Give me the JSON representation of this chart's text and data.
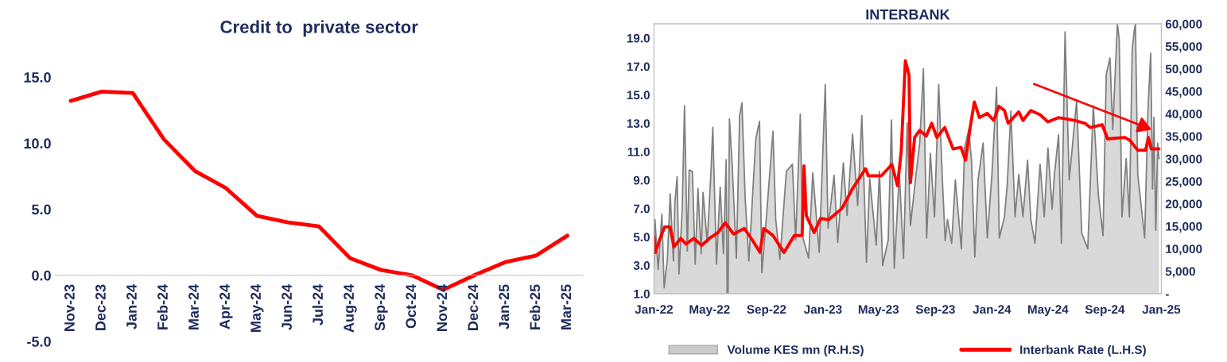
{
  "chart_data": [
    {
      "type": "line",
      "title": "Credit to  private sector",
      "categories": [
        "Nov-23",
        "Dec-23",
        "Jan-24",
        "Feb-24",
        "Mar-24",
        "Apr-24",
        "May-24",
        "Jun-24",
        "Jul-24",
        "Aug-24",
        "Sep-24",
        "Oct-24",
        "Nov-24",
        "Dec-24",
        "Jan-25",
        "Feb-25",
        "Mar-25"
      ],
      "series": [
        {
          "color": "#ff0000",
          "values": [
            13.2,
            13.9,
            13.8,
            10.3,
            7.9,
            6.6,
            4.5,
            4.0,
            3.7,
            1.3,
            0.4,
            0.0,
            -1.1,
            0.0,
            1.0,
            1.5,
            3.0
          ]
        }
      ],
      "ylim": [
        -5,
        15
      ],
      "yticks": [
        {
          "value": -5,
          "label": "-5.0"
        },
        {
          "value": 0,
          "label": "0.0"
        },
        {
          "value": 5,
          "label": "5.0"
        },
        {
          "value": 10,
          "label": "10.0"
        },
        {
          "value": 15,
          "label": "15.0"
        }
      ],
      "grid": false,
      "legend": false,
      "marker": "none",
      "line_style": "solid"
    },
    {
      "type": "line",
      "title": "INTERBANK",
      "legend": "bottom",
      "grid": false,
      "marker": "none",
      "line_style": "solid",
      "xlim": [
        "2022-01-01",
        "2025-01-01"
      ],
      "xticks": [
        {
          "value": "2022-01-01",
          "label": "Jan-22"
        },
        {
          "value": "2022-05-01",
          "label": "May-22"
        },
        {
          "value": "2022-09-01",
          "label": "Sep-22"
        },
        {
          "value": "2023-01-01",
          "label": "Jan-23"
        },
        {
          "value": "2023-05-01",
          "label": "May-23"
        },
        {
          "value": "2023-09-01",
          "label": "Sep-23"
        },
        {
          "value": "2024-01-01",
          "label": "Jan-24"
        },
        {
          "value": "2024-05-01",
          "label": "May-24"
        },
        {
          "value": "2024-09-01",
          "label": "Sep-24"
        },
        {
          "value": "2025-01-01",
          "label": "Jan-25"
        }
      ],
      "ylim": [
        1,
        20
      ],
      "yticks": [
        {
          "value": 1,
          "label": "1.0"
        },
        {
          "value": 3,
          "label": "3.0"
        },
        {
          "value": 5,
          "label": "5.0"
        },
        {
          "value": 7,
          "label": "7.0"
        },
        {
          "value": 9,
          "label": "9.0"
        },
        {
          "value": 11,
          "label": "11.0"
        },
        {
          "value": 13,
          "label": "13.0"
        },
        {
          "value": 15,
          "label": "15.0"
        },
        {
          "value": 17,
          "label": "17.0"
        },
        {
          "value": 19,
          "label": "19.0"
        }
      ],
      "y2lim": [
        0,
        60000
      ],
      "y2ticks": [
        {
          "value": 0,
          "label": "-"
        },
        {
          "value": 5000,
          "label": "5,000"
        },
        {
          "value": 10000,
          "label": "10,000"
        },
        {
          "value": 15000,
          "label": "15,000"
        },
        {
          "value": 20000,
          "label": "20,000"
        },
        {
          "value": 25000,
          "label": "25,000"
        },
        {
          "value": 30000,
          "label": "30,000"
        },
        {
          "value": 35000,
          "label": "35,000"
        },
        {
          "value": 40000,
          "label": "40,000"
        },
        {
          "value": 45000,
          "label": "45,000"
        },
        {
          "value": 50000,
          "label": "50,000"
        },
        {
          "value": 55000,
          "label": "55,000"
        },
        {
          "value": 60000,
          "label": "60,000"
        }
      ],
      "series": [
        {
          "name": "Volume KES mn (R.H.S)",
          "type": "area",
          "axis": "y2",
          "color": "#808080",
          "x": [
            "2022-01-01",
            "2022-01-03",
            "2022-01-10",
            "2022-01-18",
            "2022-01-23",
            "2022-01-30",
            "2022-02-05",
            "2022-02-12",
            "2022-02-15",
            "2022-02-20",
            "2022-02-24",
            "2022-03-03",
            "2022-03-08",
            "2022-03-14",
            "2022-03-18",
            "2022-03-25",
            "2022-03-31",
            "2022-04-06",
            "2022-04-13",
            "2022-04-17",
            "2022-04-26",
            "2022-05-04",
            "2022-05-08",
            "2022-05-16",
            "2022-05-24",
            "2022-05-31",
            "2022-06-06",
            "2022-06-08",
            "2022-06-10",
            "2022-06-13",
            "2022-06-19",
            "2022-06-28",
            "2022-07-05",
            "2022-07-10",
            "2022-07-17",
            "2022-07-25",
            "2022-08-09",
            "2022-08-17",
            "2022-08-22",
            "2022-08-30",
            "2022-09-15",
            "2022-09-21",
            "2022-09-30",
            "2022-10-14",
            "2022-10-27",
            "2022-11-03",
            "2022-11-13",
            "2022-11-18",
            "2022-12-01",
            "2022-12-10",
            "2022-12-24",
            "2023-01-06",
            "2023-01-12",
            "2023-01-25",
            "2023-02-02",
            "2023-02-14",
            "2023-02-22",
            "2023-03-06",
            "2023-03-17",
            "2023-03-26",
            "2023-04-05",
            "2023-04-12",
            "2023-04-26",
            "2023-05-03",
            "2023-05-10",
            "2023-05-22",
            "2023-05-29",
            "2023-06-04",
            "2023-06-15",
            "2023-06-24",
            "2023-07-02",
            "2023-07-09",
            "2023-07-21",
            "2023-07-29",
            "2023-08-06",
            "2023-08-13",
            "2023-08-21",
            "2023-08-30",
            "2023-09-08",
            "2023-09-16",
            "2023-09-22",
            "2023-09-27",
            "2023-10-06",
            "2023-10-14",
            "2023-10-27",
            "2023-11-03",
            "2023-11-12",
            "2023-11-18",
            "2023-11-25",
            "2023-12-02",
            "2023-12-13",
            "2023-12-22",
            "2024-01-01",
            "2024-01-11",
            "2024-01-17",
            "2024-01-28",
            "2024-02-03",
            "2024-02-11",
            "2024-02-20",
            "2024-02-28",
            "2024-03-08",
            "2024-03-18",
            "2024-03-25",
            "2024-04-03",
            "2024-04-14",
            "2024-04-23",
            "2024-05-01",
            "2024-05-10",
            "2024-05-15",
            "2024-05-24",
            "2024-05-30",
            "2024-06-07",
            "2024-06-16",
            "2024-07-02",
            "2024-07-13",
            "2024-07-26",
            "2024-08-07",
            "2024-08-18",
            "2024-08-28",
            "2024-09-04",
            "2024-09-12",
            "2024-09-18",
            "2024-09-28",
            "2024-10-02",
            "2024-10-08",
            "2024-10-17",
            "2024-10-24",
            "2024-10-30",
            "2024-11-03",
            "2024-11-06",
            "2024-11-11",
            "2024-11-26",
            "2024-12-03",
            "2024-12-09",
            "2024-12-13",
            "2024-12-16",
            "2024-12-20",
            "2024-12-24",
            "2024-12-27"
          ],
          "values": [
            5700,
            16500,
            5400,
            17700,
            1300,
            7900,
            22200,
            7300,
            19900,
            26000,
            4400,
            19000,
            41800,
            9500,
            27500,
            27200,
            6600,
            23400,
            8900,
            22500,
            11400,
            26900,
            37000,
            6600,
            23700,
            8900,
            29800,
            0,
            0,
            38900,
            28500,
            7900,
            39600,
            42400,
            21200,
            7300,
            34500,
            38300,
            4700,
            14600,
            36100,
            16500,
            7600,
            27200,
            28800,
            12000,
            39900,
            12700,
            7900,
            26900,
            9200,
            46500,
            14600,
            26300,
            11400,
            29100,
            17400,
            35500,
            19600,
            39600,
            7000,
            25600,
            10800,
            27200,
            6300,
            12000,
            38600,
            5700,
            26900,
            7900,
            38000,
            15200,
            26500,
            33500,
            50000,
            12400,
            31200,
            17100,
            46500,
            25300,
            11800,
            16500,
            11200,
            25300,
            10000,
            32400,
            36500,
            29400,
            8200,
            25300,
            33500,
            12400,
            26500,
            45900,
            12400,
            17100,
            24100,
            40600,
            17100,
            26500,
            17100,
            29700,
            16500,
            11200,
            28800,
            17100,
            32400,
            18800,
            26500,
            35300,
            11200,
            58200,
            25300,
            42900,
            13500,
            10000,
            41800,
            21800,
            12900,
            48800,
            52400,
            36500,
            60000,
            56500,
            17100,
            30000,
            17100,
            54100,
            58200,
            60000,
            26500,
            12400,
            40600,
            53500,
            23300,
            39200,
            14100,
            33500,
            30000
          ]
        },
        {
          "name": "Interbank Rate (L.H.S)",
          "type": "line",
          "axis": "y",
          "color": "#ff0000",
          "x": [
            "2022-01-01",
            "2022-01-04",
            "2022-01-13",
            "2022-01-24",
            "2022-02-05",
            "2022-02-13",
            "2022-02-28",
            "2022-03-11",
            "2022-03-28",
            "2022-04-14",
            "2022-05-01",
            "2022-05-19",
            "2022-06-04",
            "2022-06-22",
            "2022-07-15",
            "2022-08-01",
            "2022-08-18",
            "2022-08-26",
            "2022-09-15",
            "2022-10-09",
            "2022-10-31",
            "2022-11-17",
            "2022-11-21",
            "2022-11-26",
            "2022-12-13",
            "2022-12-27",
            "2023-01-13",
            "2023-02-11",
            "2023-03-06",
            "2023-04-03",
            "2023-04-09",
            "2023-05-07",
            "2023-05-30",
            "2023-06-11",
            "2023-06-19",
            "2023-06-28",
            "2023-07-06",
            "2023-07-09",
            "2023-07-18",
            "2023-07-29",
            "2023-08-12",
            "2023-08-24",
            "2023-09-04",
            "2023-09-21",
            "2023-10-09",
            "2023-10-26",
            "2023-11-05",
            "2023-11-15",
            "2023-11-24",
            "2023-12-05",
            "2023-12-22",
            "2024-01-05",
            "2024-01-16",
            "2024-01-28",
            "2024-02-05",
            "2024-02-28",
            "2024-03-08",
            "2024-03-25",
            "2024-04-14",
            "2024-05-01",
            "2024-05-24",
            "2024-06-27",
            "2024-07-20",
            "2024-07-31",
            "2024-08-26",
            "2024-09-07",
            "2024-10-14",
            "2024-10-25",
            "2024-11-11",
            "2024-11-28",
            "2024-12-04",
            "2024-12-10",
            "2024-12-27"
          ],
          "values": [
            5.0,
            3.9,
            4.8,
            5.7,
            5.7,
            4.3,
            4.9,
            4.5,
            4.9,
            4.4,
            4.9,
            5.3,
            6.0,
            5.2,
            5.6,
            4.8,
            3.9,
            5.6,
            5.1,
            3.9,
            5.1,
            5.1,
            10.0,
            6.5,
            5.3,
            6.3,
            6.2,
            7.0,
            8.4,
            9.8,
            9.3,
            9.3,
            10.1,
            8.6,
            11.0,
            17.4,
            16.4,
            8.8,
            12.0,
            12.5,
            12.1,
            13.0,
            12.0,
            12.7,
            11.2,
            11.3,
            10.4,
            12.7,
            14.5,
            13.4,
            13.7,
            13.2,
            14.2,
            13.9,
            13.0,
            13.8,
            13.2,
            13.9,
            13.6,
            13.1,
            13.4,
            13.2,
            13.0,
            12.7,
            12.9,
            11.9,
            12.0,
            11.8,
            11.1,
            11.1,
            12.0,
            11.2,
            11.2
          ]
        }
      ]
    }
  ]
}
